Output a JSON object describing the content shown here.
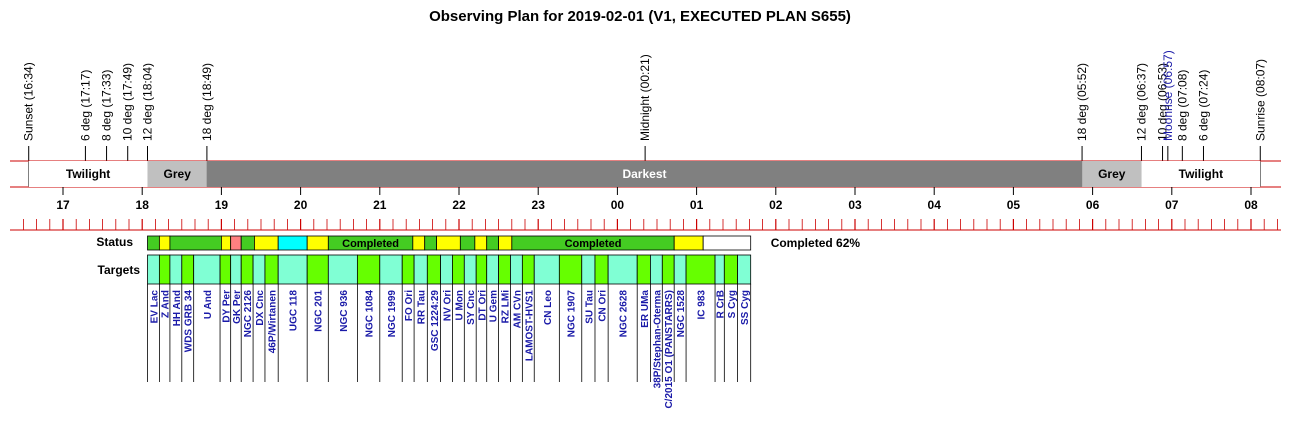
{
  "title": "Observing Plan for 2019-02-01 (V1, EXECUTED PLAN S655)",
  "colors": {
    "twilight": "#ffffff",
    "grey": "#c0c0c0",
    "darkest": "#808080",
    "completed": "#44cc22",
    "pending": "#ffff00",
    "failed": "#ff8080",
    "active": "#00ffff",
    "empty": "#ffffff",
    "target_green": "#66ff00",
    "target_aqua": "#80ffd4",
    "axis_red": "#cc0000",
    "moon_text": "#1a1aa8",
    "target_text": "#1a1aa8"
  },
  "chart_data": {
    "type": "timeline",
    "title": "Observing Plan for 2019-02-01 (V1, EXECUTED PLAN S655)",
    "x_unit": "hours",
    "xlim": [
      16.5,
      32.5
    ],
    "events": [
      {
        "label": "Sunset (16:34)",
        "t": 16.567
      },
      {
        "label": "6 deg (17:17)",
        "t": 17.283
      },
      {
        "label": "8 deg (17:33)",
        "t": 17.55
      },
      {
        "label": "10 deg (17:49)",
        "t": 17.817
      },
      {
        "label": "12 deg (18:04)",
        "t": 18.067
      },
      {
        "label": "18 deg (18:49)",
        "t": 18.817
      },
      {
        "label": "Midnight (00:21)",
        "t": 24.35
      },
      {
        "label": "18 deg (05:52)",
        "t": 29.867
      },
      {
        "label": "12 deg (06:37)",
        "t": 30.617
      },
      {
        "label": "10 deg (06:53)",
        "t": 30.883
      },
      {
        "label": "Moonrise (06:57)",
        "t": 30.95,
        "moon": true
      },
      {
        "label": "8 deg (07:08)",
        "t": 31.133
      },
      {
        "label": "6 deg (07:24)",
        "t": 31.4
      },
      {
        "label": "Sunrise (08:07)",
        "t": 32.117
      }
    ],
    "bands": [
      {
        "label": "Twilight",
        "start": 16.567,
        "end": 18.067,
        "color": "twilight"
      },
      {
        "label": "Grey",
        "start": 18.067,
        "end": 18.817,
        "color": "grey"
      },
      {
        "label": "Darkest",
        "start": 18.817,
        "end": 29.867,
        "color": "darkest"
      },
      {
        "label": "Grey",
        "start": 29.867,
        "end": 30.617,
        "color": "grey"
      },
      {
        "label": "Twilight",
        "start": 30.617,
        "end": 32.117,
        "color": "twilight"
      }
    ],
    "hour_ticks": [
      {
        "label": "17",
        "t": 17
      },
      {
        "label": "18",
        "t": 18
      },
      {
        "label": "19",
        "t": 19
      },
      {
        "label": "20",
        "t": 20
      },
      {
        "label": "21",
        "t": 21
      },
      {
        "label": "22",
        "t": 22
      },
      {
        "label": "23",
        "t": 23
      },
      {
        "label": "00",
        "t": 24
      },
      {
        "label": "01",
        "t": 25
      },
      {
        "label": "02",
        "t": 26
      },
      {
        "label": "03",
        "t": 27
      },
      {
        "label": "04",
        "t": 28
      },
      {
        "label": "05",
        "t": 29
      },
      {
        "label": "06",
        "t": 30
      },
      {
        "label": "07",
        "t": 31
      },
      {
        "label": "08",
        "t": 32
      }
    ],
    "status_label": "Status",
    "status": [
      {
        "start": 18.067,
        "end": 18.217,
        "state": "completed"
      },
      {
        "start": 18.217,
        "end": 18.35,
        "state": "pending"
      },
      {
        "start": 18.35,
        "end": 19.0,
        "state": "completed"
      },
      {
        "start": 19.0,
        "end": 19.117,
        "state": "pending"
      },
      {
        "start": 19.117,
        "end": 19.25,
        "state": "failed"
      },
      {
        "start": 19.25,
        "end": 19.417,
        "state": "completed"
      },
      {
        "start": 19.417,
        "end": 19.717,
        "state": "pending"
      },
      {
        "start": 19.717,
        "end": 20.083,
        "state": "active"
      },
      {
        "start": 20.083,
        "end": 20.35,
        "state": "pending"
      },
      {
        "start": 20.35,
        "end": 21.417,
        "state": "completed",
        "label": "Completed"
      },
      {
        "start": 21.417,
        "end": 21.567,
        "state": "pending"
      },
      {
        "start": 21.567,
        "end": 21.717,
        "state": "completed"
      },
      {
        "start": 21.717,
        "end": 22.017,
        "state": "pending"
      },
      {
        "start": 22.017,
        "end": 22.2,
        "state": "completed"
      },
      {
        "start": 22.2,
        "end": 22.35,
        "state": "pending"
      },
      {
        "start": 22.35,
        "end": 22.5,
        "state": "completed"
      },
      {
        "start": 22.5,
        "end": 22.667,
        "state": "pending"
      },
      {
        "start": 22.667,
        "end": 24.717,
        "state": "completed",
        "label": "Completed"
      },
      {
        "start": 24.717,
        "end": 25.083,
        "state": "pending"
      },
      {
        "start": 25.083,
        "end": 25.683,
        "state": "empty"
      }
    ],
    "completed_summary": "Completed 62%",
    "targets_label": "Targets",
    "targets": [
      {
        "name": "EV Lac",
        "start": 18.067,
        "end": 18.217,
        "color": "aqua"
      },
      {
        "name": "Z And",
        "start": 18.217,
        "end": 18.35,
        "color": "green"
      },
      {
        "name": "HH And",
        "start": 18.35,
        "end": 18.5,
        "color": "aqua"
      },
      {
        "name": "WDS GRB 34",
        "start": 18.5,
        "end": 18.65,
        "color": "green"
      },
      {
        "name": "U And",
        "start": 18.65,
        "end": 18.983,
        "color": "aqua"
      },
      {
        "name": "DY Per",
        "start": 18.983,
        "end": 19.117,
        "color": "green"
      },
      {
        "name": "GK Per",
        "start": 19.117,
        "end": 19.25,
        "color": "aqua"
      },
      {
        "name": "NGC 2126",
        "start": 19.25,
        "end": 19.4,
        "color": "green"
      },
      {
        "name": "DX Cnc",
        "start": 19.4,
        "end": 19.55,
        "color": "aqua"
      },
      {
        "name": "46P/Wirtanen",
        "start": 19.55,
        "end": 19.717,
        "color": "green"
      },
      {
        "name": "UGC 118",
        "start": 19.717,
        "end": 20.083,
        "color": "aqua"
      },
      {
        "name": "NGC 201",
        "start": 20.083,
        "end": 20.35,
        "color": "green"
      },
      {
        "name": "NGC 936",
        "start": 20.35,
        "end": 20.717,
        "color": "aqua"
      },
      {
        "name": "NGC 1084",
        "start": 20.717,
        "end": 21.0,
        "color": "green"
      },
      {
        "name": "NGC 1999",
        "start": 21.0,
        "end": 21.283,
        "color": "aqua"
      },
      {
        "name": "FO Ori",
        "start": 21.283,
        "end": 21.433,
        "color": "green"
      },
      {
        "name": "RR Tau",
        "start": 21.433,
        "end": 21.6,
        "color": "aqua"
      },
      {
        "name": "GSC 1224:29",
        "start": 21.6,
        "end": 21.767,
        "color": "green"
      },
      {
        "name": "NV Ori",
        "start": 21.767,
        "end": 21.917,
        "color": "aqua"
      },
      {
        "name": "U Mon",
        "start": 21.917,
        "end": 22.067,
        "color": "green"
      },
      {
        "name": "SY Cnc",
        "start": 22.067,
        "end": 22.217,
        "color": "aqua"
      },
      {
        "name": "DT Ori",
        "start": 22.217,
        "end": 22.35,
        "color": "green"
      },
      {
        "name": "U Gem",
        "start": 22.35,
        "end": 22.5,
        "color": "aqua"
      },
      {
        "name": "RZ LMi",
        "start": 22.5,
        "end": 22.65,
        "color": "green"
      },
      {
        "name": "AM CVn",
        "start": 22.65,
        "end": 22.8,
        "color": "aqua"
      },
      {
        "name": "LAMOST-HVS1",
        "start": 22.8,
        "end": 22.95,
        "color": "green"
      },
      {
        "name": "CN Leo",
        "start": 22.95,
        "end": 23.267,
        "color": "aqua"
      },
      {
        "name": "NGC 1907",
        "start": 23.267,
        "end": 23.55,
        "color": "green"
      },
      {
        "name": "SU Tau",
        "start": 23.55,
        "end": 23.717,
        "color": "aqua"
      },
      {
        "name": "CN Ori",
        "start": 23.717,
        "end": 23.883,
        "color": "green"
      },
      {
        "name": "NGC 2628",
        "start": 23.883,
        "end": 24.25,
        "color": "aqua"
      },
      {
        "name": "ER UMa",
        "start": 24.25,
        "end": 24.417,
        "color": "green"
      },
      {
        "name": "38P/Stephan-Oterma",
        "start": 24.417,
        "end": 24.567,
        "color": "aqua"
      },
      {
        "name": "C/2015 O1 (PANSTARRS)",
        "start": 24.567,
        "end": 24.717,
        "color": "green"
      },
      {
        "name": "NGC 1528",
        "start": 24.717,
        "end": 24.867,
        "color": "aqua"
      },
      {
        "name": "IC 983",
        "start": 24.867,
        "end": 25.233,
        "color": "green"
      },
      {
        "name": "R CrB",
        "start": 25.233,
        "end": 25.35,
        "color": "aqua"
      },
      {
        "name": "S Cyg",
        "start": 25.35,
        "end": 25.517,
        "color": "green"
      },
      {
        "name": "SS Cyg",
        "start": 25.517,
        "end": 25.683,
        "color": "aqua"
      }
    ]
  }
}
